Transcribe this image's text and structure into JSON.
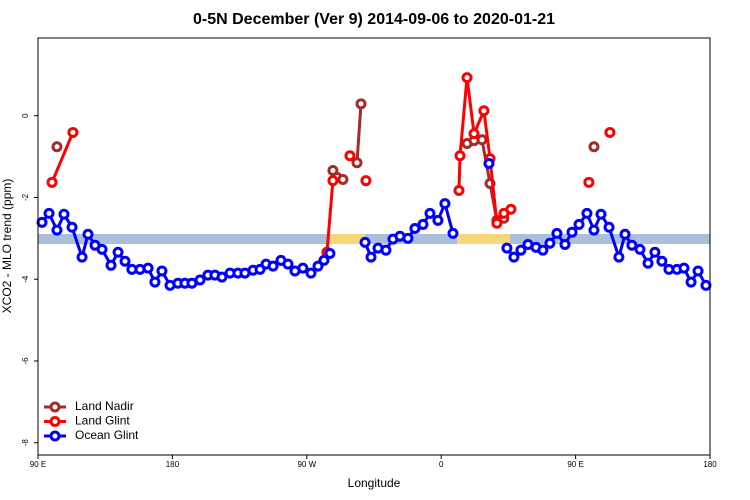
{
  "chart_data": {
    "type": "line",
    "title": "0-5N December (Ver 9)   2014-09-06 to 2020-01-21",
    "x_label": "Longitude",
    "y_label": "XCO2 - MLO trend (ppm)",
    "xlim": [
      90,
      540
    ],
    "ylim": [
      -8.3,
      1.9
    ],
    "xticks": [
      {
        "value": 90,
        "label": "90 E"
      },
      {
        "value": 180,
        "label": "180"
      },
      {
        "value": 270,
        "label": "90 W"
      },
      {
        "value": 360,
        "label": "0"
      },
      {
        "value": 450,
        "label": "90 E"
      },
      {
        "value": 540,
        "label": "180"
      }
    ],
    "yticks": [
      0,
      -2,
      -4,
      -6,
      -8
    ],
    "legend": "bottom-left",
    "series": [
      {
        "name": "Land Nadir",
        "color": "#a52a2a",
        "x": [
          102.7,
          200,
          287.5,
          290.2,
          294.2,
          296,
          303.6,
          306.3,
          340,
          377.3,
          382.0,
          387.3,
          392.7,
          397.3,
          402.0,
          450,
          462.3
        ],
        "values": [
          -0.76,
          null,
          -1.34,
          -1.51,
          -1.56,
          null,
          -1.15,
          0.29,
          null,
          -0.68,
          -0.61,
          -0.59,
          -1.66,
          -2.56,
          -2.51,
          null,
          -0.76
        ]
      },
      {
        "name": "Land Glint",
        "color": "#ff0000",
        "x": [
          99.4,
          113.4,
          200,
          283.5,
          287.5,
          292,
          298.9,
          303,
          309.6,
          340,
          371.9,
          372.6,
          377.3,
          382.0,
          388.6,
          392.7,
          397.3,
          402.0,
          406.7,
          450,
          458.9,
          462,
          473.0
        ],
        "values": [
          -1.63,
          -0.41,
          null,
          -3.34,
          -1.59,
          null,
          -0.98,
          null,
          -1.59,
          null,
          -1.83,
          -0.98,
          0.93,
          -0.44,
          0.12,
          -1.05,
          -2.63,
          -2.39,
          -2.29,
          null,
          -1.63,
          null,
          -0.41
        ]
      },
      {
        "name": "Ocean Glint",
        "color": "#0000ff",
        "x": [
          92.7,
          97.4,
          102.7,
          107.4,
          112.8,
          119.5,
          123.5,
          128.2,
          132.9,
          138.9,
          143.6,
          148.3,
          152.9,
          158.3,
          163.7,
          168.3,
          173.0,
          178.4,
          183.7,
          188.4,
          193.1,
          198.5,
          203.8,
          208.5,
          213.2,
          218.6,
          223.9,
          228.6,
          234.0,
          238.7,
          242.7,
          247.4,
          252.7,
          257.4,
          262.1,
          267.4,
          272.8,
          277.5,
          281.5,
          285.5,
          297,
          309.0,
          313.0,
          317.7,
          323.0,
          327.7,
          332.4,
          337.7,
          342.4,
          347.8,
          352.5,
          357.8,
          362.5,
          367.9,
          380,
          392.0,
          398,
          404.0,
          408.7,
          413.4,
          418.1,
          423.5,
          428.1,
          432.8,
          437.5,
          442.9,
          447.6,
          452.3,
          457.6,
          462.3,
          467.0,
          472.4,
          479.0,
          483.1,
          487.7,
          493.1,
          498.5,
          503.1,
          507.8,
          512.5,
          517.9,
          522.6,
          527.3,
          532.0,
          537.3
        ],
        "values": [
          -2.61,
          -2.39,
          -2.8,
          -2.41,
          -2.73,
          -3.46,
          -2.9,
          -3.17,
          -3.27,
          -3.66,
          -3.34,
          -3.56,
          -3.76,
          -3.76,
          -3.73,
          -4.07,
          -3.8,
          -4.15,
          -4.1,
          -4.1,
          -4.1,
          -4.02,
          -3.9,
          -3.9,
          -3.95,
          -3.85,
          -3.85,
          -3.85,
          -3.78,
          -3.76,
          -3.63,
          -3.68,
          -3.54,
          -3.63,
          -3.8,
          -3.73,
          -3.85,
          -3.68,
          -3.54,
          -3.37,
          null,
          -3.1,
          -3.46,
          -3.24,
          -3.29,
          -3.02,
          -2.95,
          -3.0,
          -2.76,
          -2.66,
          -2.39,
          -2.56,
          -2.15,
          -2.88,
          null,
          -1.17,
          null,
          -3.24,
          -3.46,
          -3.29,
          -3.15,
          -3.22,
          -3.29,
          -3.12,
          -2.88,
          -3.15,
          -2.85,
          -2.66,
          -2.39,
          -2.8,
          -2.41,
          -2.73,
          -3.46,
          -2.9,
          -3.17,
          -3.27,
          -3.61,
          -3.34,
          -3.56,
          -3.76,
          -3.76,
          -3.73,
          -4.07,
          -3.8,
          -4.15
        ]
      }
    ]
  }
}
